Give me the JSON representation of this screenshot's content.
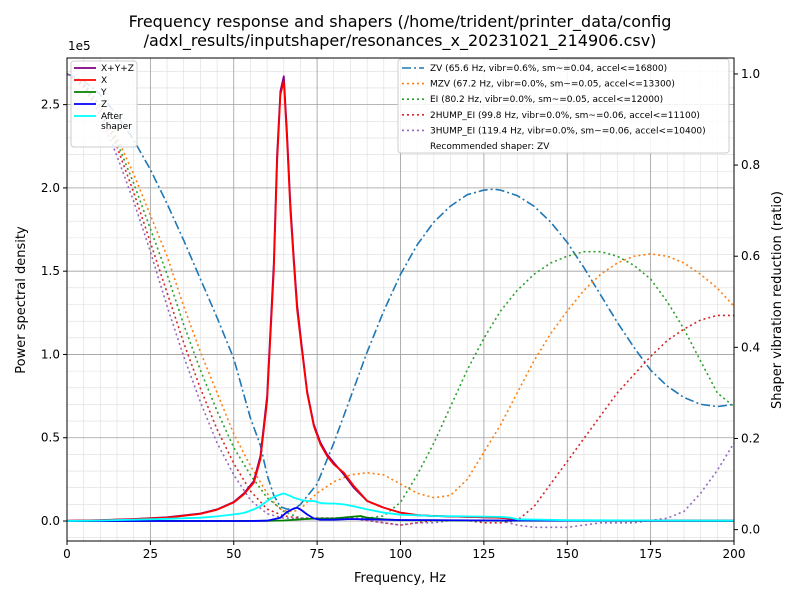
{
  "chart_data": {
    "type": "line",
    "title": "Frequency response and shapers (/home/trident/printer_data/config\n/adxl_results/inputshaper/resonances_x_20231021_214906.csv)",
    "title_lines": [
      "Frequency response and shapers (/home/trident/printer_data/config",
      "/adxl_results/inputshaper/resonances_x_20231021_214906.csv)"
    ],
    "xlabel": "Frequency, Hz",
    "ylabel": "Power spectral density",
    "y2label": "Shaper vibration reduction (ratio)",
    "y_offset_text": "1e5",
    "xlim": [
      0,
      200
    ],
    "ylim": [
      -0.12,
      2.78
    ],
    "y2lim": [
      -0.025,
      1.035
    ],
    "x_ticks": [
      "0",
      "25",
      "50",
      "75",
      "100",
      "125",
      "150",
      "175",
      "200"
    ],
    "y_ticks": [
      "0.0",
      "0.5",
      "1.0",
      "1.5",
      "2.0",
      "2.5"
    ],
    "y2_ticks": [
      "0.0",
      "0.2",
      "0.4",
      "0.6",
      "0.8",
      "1.0"
    ],
    "grid": true,
    "psd_legend_placement": "upper left",
    "shaper_legend_placement": "upper right",
    "psd_series": [
      {
        "name": "X+Y+Z",
        "color": "#800080",
        "style": "solid",
        "x": [
          0,
          10,
          20,
          30,
          40,
          45,
          50,
          53,
          56,
          58,
          60,
          62,
          63,
          64,
          65,
          66,
          67,
          68,
          69,
          70,
          72,
          74,
          76,
          78,
          80,
          83,
          86,
          90,
          95,
          100,
          105,
          110,
          120,
          130,
          135,
          140,
          150,
          175,
          200
        ],
        "y": [
          0.001,
          0.005,
          0.012,
          0.022,
          0.045,
          0.07,
          0.115,
          0.165,
          0.24,
          0.39,
          0.75,
          1.55,
          2.2,
          2.58,
          2.67,
          2.32,
          1.9,
          1.58,
          1.3,
          1.12,
          0.78,
          0.58,
          0.47,
          0.4,
          0.35,
          0.28,
          0.2,
          0.12,
          0.08,
          0.05,
          0.035,
          0.03,
          0.025,
          0.02,
          0.01,
          0.005,
          0.003,
          0.002,
          0.001
        ]
      },
      {
        "name": "X",
        "color": "#ff0000",
        "style": "solid",
        "x": [
          0,
          10,
          20,
          30,
          40,
          45,
          50,
          53,
          56,
          58,
          60,
          62,
          63,
          64,
          65,
          66,
          67,
          68,
          69,
          70,
          72,
          74,
          76,
          78,
          80,
          83,
          86,
          90,
          95,
          100,
          105,
          110,
          120,
          130,
          135,
          140,
          150,
          175,
          200
        ],
        "y": [
          0.001,
          0.004,
          0.011,
          0.02,
          0.043,
          0.068,
          0.112,
          0.16,
          0.23,
          0.37,
          0.72,
          1.5,
          2.15,
          2.56,
          2.64,
          2.28,
          1.86,
          1.55,
          1.27,
          1.1,
          0.77,
          0.57,
          0.46,
          0.39,
          0.34,
          0.29,
          0.21,
          0.12,
          0.08,
          0.05,
          0.035,
          0.03,
          0.025,
          0.02,
          0.01,
          0.005,
          0.003,
          0.002,
          0.001
        ]
      },
      {
        "name": "Y",
        "color": "#008000",
        "style": "solid",
        "x": [
          0,
          50,
          60,
          65,
          70,
          75,
          80,
          85,
          88,
          90,
          95,
          100,
          130,
          200
        ],
        "y": [
          0,
          0,
          0.001,
          0.003,
          0.01,
          0.015,
          0.015,
          0.025,
          0.03,
          0.02,
          0.01,
          0.005,
          0.002,
          0.001
        ]
      },
      {
        "name": "Z",
        "color": "#0000ff",
        "style": "solid",
        "x": [
          0,
          55,
          60,
          64,
          66,
          68,
          69,
          70,
          72,
          74,
          76,
          80,
          85,
          90,
          100,
          130,
          200
        ],
        "y": [
          0,
          0,
          0.002,
          0.02,
          0.055,
          0.075,
          0.08,
          0.07,
          0.04,
          0.015,
          0.008,
          0.008,
          0.012,
          0.01,
          0.006,
          0.003,
          0.001
        ]
      },
      {
        "name": "After\nshaper",
        "color": "#00ffff",
        "style": "solid",
        "x": [
          0,
          10,
          20,
          30,
          40,
          45,
          50,
          53,
          56,
          58,
          60,
          62,
          64,
          65,
          66,
          67,
          68,
          70,
          72,
          74,
          76,
          78,
          80,
          83,
          86,
          90,
          95,
          100,
          110,
          120,
          130,
          133,
          135,
          150,
          175,
          200
        ],
        "y": [
          0,
          0.003,
          0.008,
          0.013,
          0.02,
          0.028,
          0.04,
          0.048,
          0.07,
          0.09,
          0.12,
          0.145,
          0.16,
          0.165,
          0.158,
          0.15,
          0.14,
          0.128,
          0.12,
          0.12,
          0.108,
          0.105,
          0.105,
          0.1,
          0.088,
          0.07,
          0.05,
          0.038,
          0.03,
          0.028,
          0.025,
          0.02,
          0.01,
          0.005,
          0.003,
          0.002
        ]
      }
    ],
    "shaper_series": [
      {
        "name": "ZV (65.6 Hz, vibr=0.6%, sm~=0.04, accel<=16800)",
        "color": "#1f77b4",
        "style": "dashdot",
        "x": [
          0,
          5,
          10,
          15,
          20,
          25,
          30,
          35,
          40,
          45,
          50,
          55,
          58,
          60,
          62,
          64,
          66,
          68,
          70,
          75,
          80,
          85,
          90,
          95,
          100,
          105,
          110,
          115,
          120,
          125,
          128,
          130,
          135,
          140,
          145,
          150,
          155,
          160,
          165,
          170,
          175,
          180,
          185,
          190,
          195,
          200
        ],
        "y": [
          1.0,
          0.985,
          0.955,
          0.91,
          0.855,
          0.79,
          0.715,
          0.635,
          0.55,
          0.465,
          0.375,
          0.245,
          0.185,
          0.12,
          0.075,
          0.05,
          0.045,
          0.045,
          0.055,
          0.1,
          0.19,
          0.29,
          0.39,
          0.48,
          0.56,
          0.625,
          0.675,
          0.71,
          0.735,
          0.745,
          0.747,
          0.745,
          0.733,
          0.71,
          0.675,
          0.63,
          0.575,
          0.515,
          0.455,
          0.4,
          0.35,
          0.315,
          0.29,
          0.275,
          0.27,
          0.275
        ]
      },
      {
        "name": "MZV (67.2 Hz, vibr=0.0%, sm~=0.05, accel<=13300)",
        "color": "#ff7f0e",
        "style": "dotted",
        "x": [
          0,
          5,
          10,
          15,
          20,
          25,
          30,
          35,
          40,
          45,
          50,
          55,
          60,
          62,
          64,
          66,
          68,
          70,
          72,
          75,
          80,
          85,
          90,
          95,
          100,
          105,
          110,
          115,
          120,
          125,
          130,
          135,
          140,
          145,
          150,
          155,
          160,
          165,
          170,
          175,
          180,
          185,
          190,
          195,
          200
        ],
        "y": [
          1.0,
          0.98,
          0.93,
          0.86,
          0.78,
          0.69,
          0.6,
          0.49,
          0.39,
          0.3,
          0.21,
          0.14,
          0.08,
          0.06,
          0.045,
          0.04,
          0.04,
          0.045,
          0.06,
          0.08,
          0.105,
          0.12,
          0.125,
          0.12,
          0.1,
          0.08,
          0.07,
          0.075,
          0.11,
          0.17,
          0.23,
          0.3,
          0.37,
          0.43,
          0.48,
          0.525,
          0.56,
          0.585,
          0.6,
          0.605,
          0.6,
          0.585,
          0.56,
          0.53,
          0.49
        ]
      },
      {
        "name": "EI (80.2 Hz, vibr=0.0%, sm~=0.05, accel<=12000)",
        "color": "#2ca02c",
        "style": "dotted",
        "x": [
          0,
          5,
          10,
          15,
          20,
          25,
          30,
          35,
          40,
          45,
          50,
          55,
          60,
          65,
          70,
          75,
          80,
          85,
          90,
          95,
          100,
          105,
          110,
          115,
          120,
          125,
          130,
          135,
          140,
          145,
          150,
          155,
          160,
          165,
          170,
          175,
          180,
          185,
          190,
          195,
          200
        ],
        "y": [
          1.0,
          0.98,
          0.93,
          0.85,
          0.76,
          0.66,
          0.56,
          0.45,
          0.35,
          0.26,
          0.18,
          0.12,
          0.07,
          0.04,
          0.025,
          0.025,
          0.025,
          0.025,
          0.025,
          0.03,
          0.06,
          0.12,
          0.19,
          0.27,
          0.35,
          0.42,
          0.48,
          0.525,
          0.56,
          0.585,
          0.6,
          0.61,
          0.61,
          0.6,
          0.58,
          0.55,
          0.5,
          0.44,
          0.37,
          0.3,
          0.27
        ]
      },
      {
        "name": "2HUMP_EI (99.8 Hz, vibr=0.0%, sm~=0.06, accel<=11100)",
        "color": "#d62728",
        "style": "dotted",
        "x": [
          0,
          5,
          10,
          15,
          20,
          25,
          30,
          35,
          40,
          45,
          50,
          55,
          60,
          65,
          70,
          75,
          80,
          85,
          90,
          95,
          100,
          105,
          110,
          115,
          120,
          125,
          130,
          135,
          140,
          145,
          150,
          155,
          160,
          165,
          170,
          175,
          180,
          185,
          190,
          195,
          200
        ],
        "y": [
          1.0,
          0.975,
          0.92,
          0.84,
          0.74,
          0.63,
          0.52,
          0.41,
          0.31,
          0.22,
          0.145,
          0.085,
          0.045,
          0.03,
          0.025,
          0.025,
          0.025,
          0.025,
          0.02,
          0.015,
          0.01,
          0.015,
          0.02,
          0.02,
          0.02,
          0.015,
          0.015,
          0.02,
          0.05,
          0.1,
          0.15,
          0.2,
          0.25,
          0.3,
          0.34,
          0.38,
          0.415,
          0.44,
          0.46,
          0.47,
          0.47
        ]
      },
      {
        "name": "3HUMP_EI (119.4 Hz, vibr=0.0%, sm~=0.06, accel<=10400)",
        "color": "#9467bd",
        "style": "dotted",
        "x": [
          0,
          5,
          10,
          15,
          20,
          25,
          30,
          35,
          40,
          45,
          50,
          55,
          60,
          65,
          70,
          75,
          80,
          85,
          90,
          95,
          100,
          105,
          110,
          115,
          120,
          125,
          130,
          135,
          140,
          145,
          150,
          155,
          160,
          165,
          170,
          175,
          180,
          185,
          190,
          195,
          200
        ],
        "y": [
          1.0,
          0.97,
          0.91,
          0.82,
          0.72,
          0.61,
          0.49,
          0.38,
          0.28,
          0.19,
          0.12,
          0.065,
          0.035,
          0.025,
          0.025,
          0.025,
          0.025,
          0.025,
          0.02,
          0.015,
          0.01,
          0.015,
          0.015,
          0.02,
          0.02,
          0.02,
          0.02,
          0.01,
          0.005,
          0.005,
          0.005,
          0.01,
          0.015,
          0.015,
          0.015,
          0.02,
          0.025,
          0.04,
          0.08,
          0.13,
          0.19
        ]
      }
    ],
    "recommendation": "Recommended shaper: ZV"
  }
}
